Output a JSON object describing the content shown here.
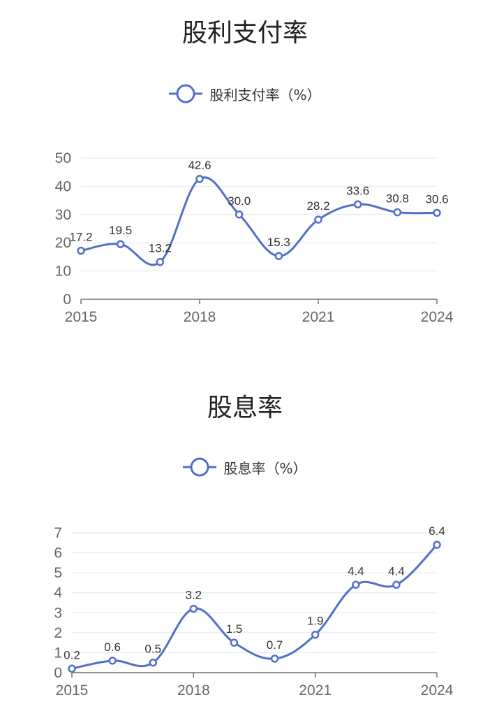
{
  "chart_data": [
    {
      "type": "line",
      "title": "股利支付率",
      "x": [
        "2015",
        "2016",
        "2017",
        "2018",
        "2019",
        "2020",
        "2021",
        "2022",
        "2023",
        "2024"
      ],
      "series": [
        {
          "name": "股利支付率（%）",
          "values": [
            17.2,
            19.5,
            13.2,
            42.6,
            30.0,
            15.3,
            28.2,
            33.6,
            30.8,
            30.6
          ],
          "labels": [
            "17.2",
            "19.5",
            "13.2",
            "42.6",
            "30.0",
            "15.3",
            "28.2",
            "33.6",
            "30.8",
            "30.6"
          ]
        }
      ],
      "xticks": [
        "2015",
        "2018",
        "2021",
        "2024"
      ],
      "yticks": [
        "0",
        "10",
        "20",
        "30",
        "40",
        "50"
      ],
      "ylim": [
        0,
        50
      ],
      "grid": true,
      "legend": "top-center",
      "color": "#5470c6"
    },
    {
      "type": "line",
      "title": "股息率",
      "x": [
        "2015",
        "2016",
        "2017",
        "2018",
        "2019",
        "2020",
        "2021",
        "2022",
        "2023",
        "2024"
      ],
      "series": [
        {
          "name": "股息率（%）",
          "values": [
            0.2,
            0.6,
            0.5,
            3.2,
            1.5,
            0.7,
            1.9,
            4.4,
            4.4,
            6.4
          ],
          "labels": [
            "0.2",
            "0.6",
            "0.5",
            "3.2",
            "1.5",
            "0.7",
            "1.9",
            "4.4",
            "4.4",
            "6.4"
          ]
        }
      ],
      "xticks": [
        "2015",
        "2018",
        "2021",
        "2024"
      ],
      "yticks": [
        "0",
        "1",
        "2",
        "3",
        "4",
        "5",
        "6",
        "7"
      ],
      "ylim": [
        0,
        7
      ],
      "grid": true,
      "legend": "top-center",
      "color": "#5470c6"
    }
  ]
}
